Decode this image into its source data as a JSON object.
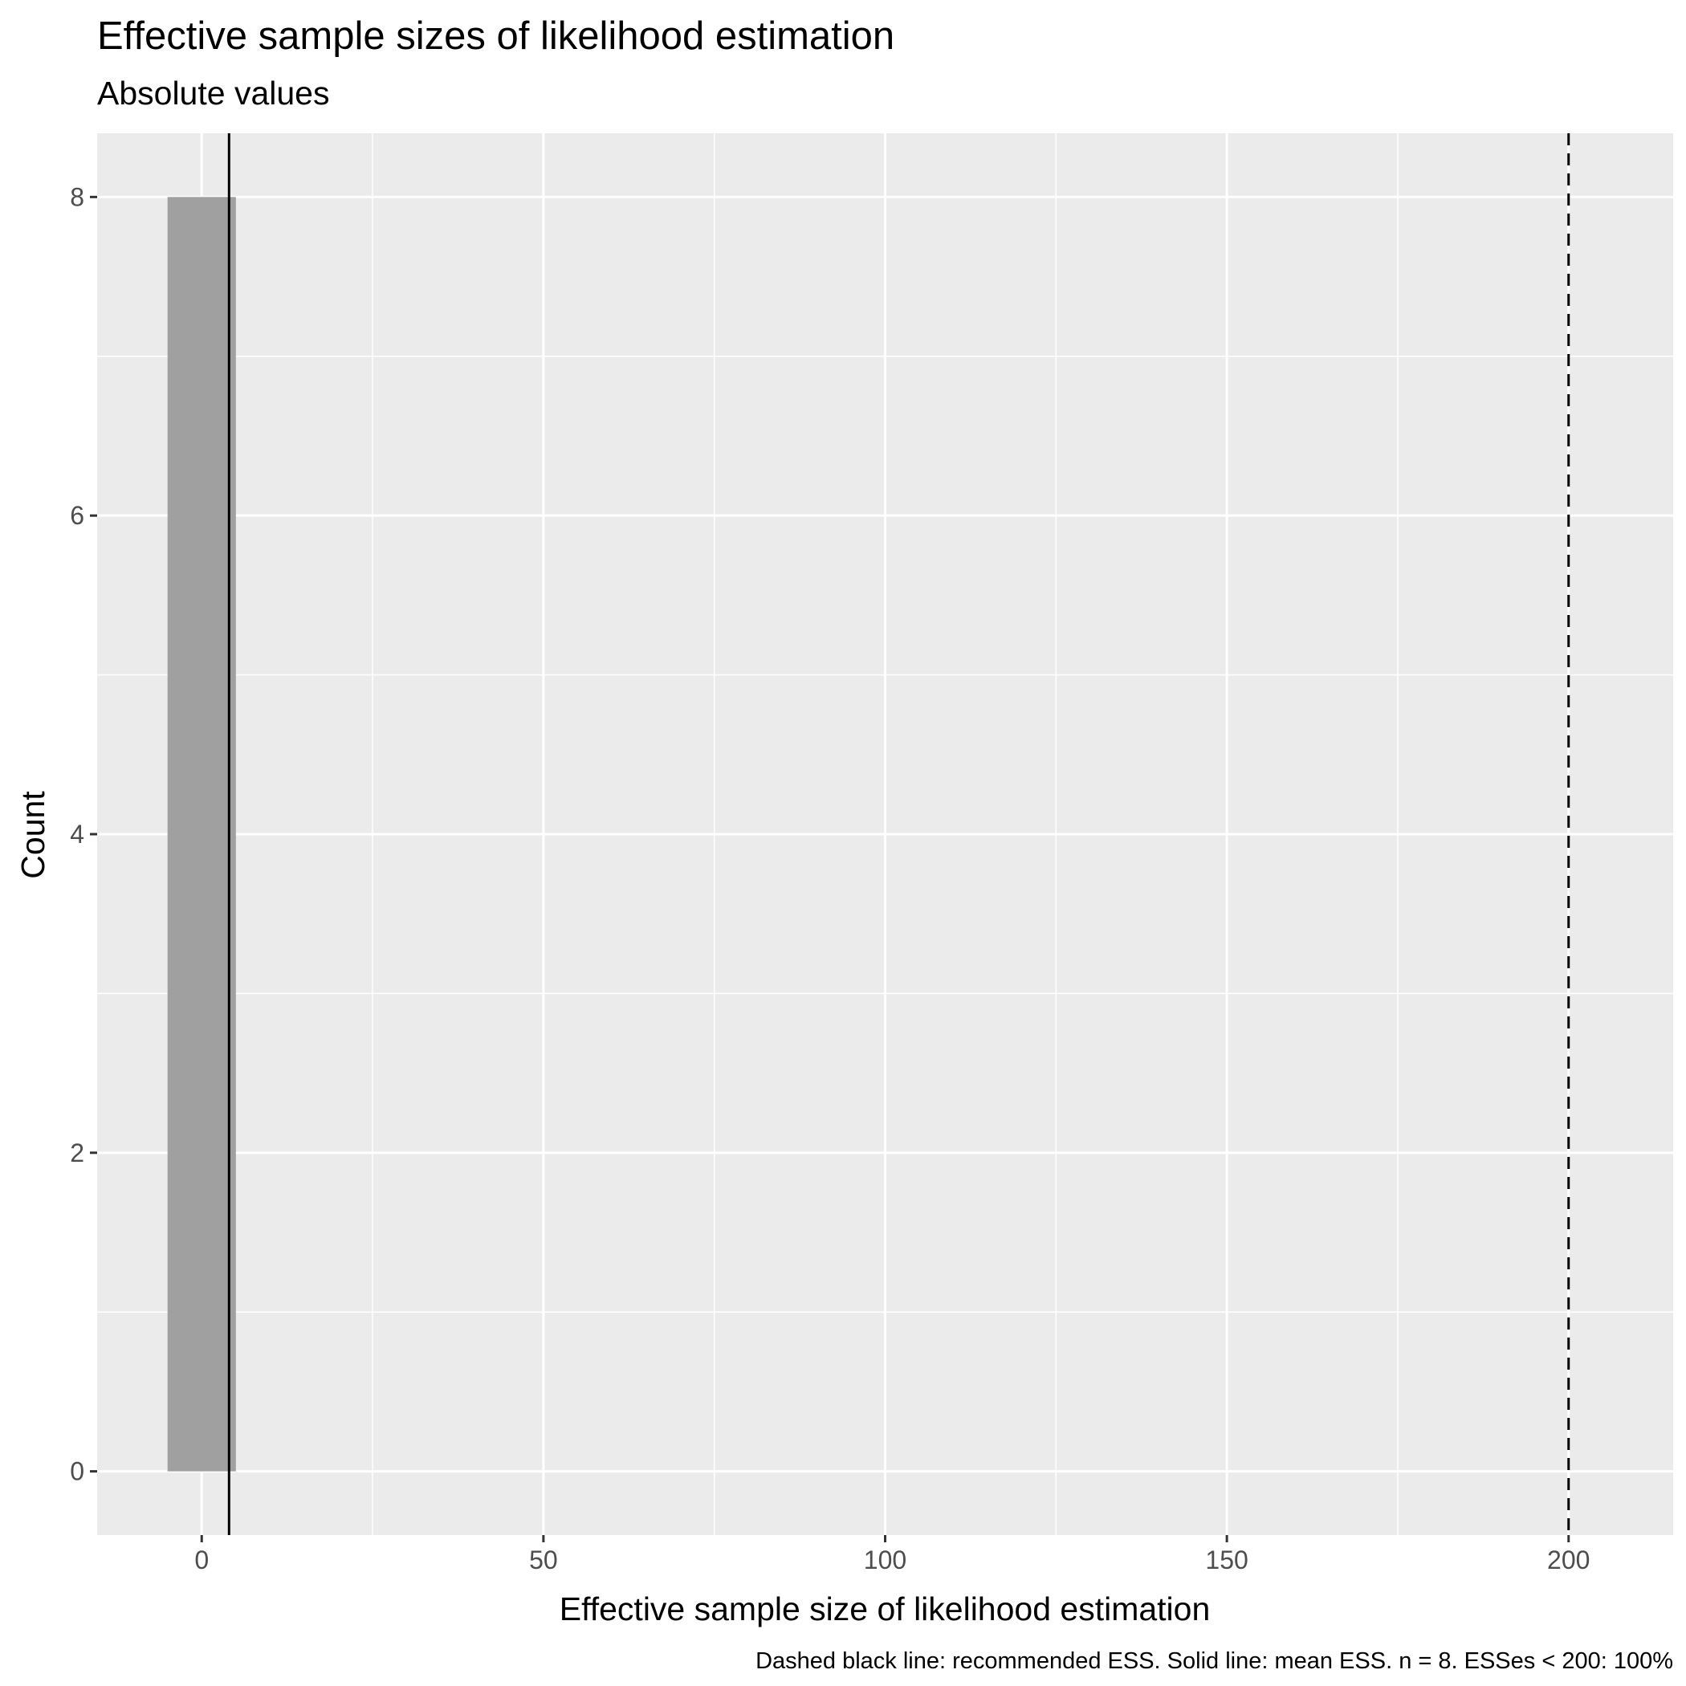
{
  "chart_data": {
    "type": "bar",
    "title": "Effective sample sizes of likelihood estimation",
    "subtitle": "Absolute values",
    "xlabel": "Effective sample size of likelihood estimation",
    "ylabel": "Count",
    "caption": "Dashed black line: recommended ESS. Solid line: mean ESS. n =  8. ESSes < 200: 100%",
    "xlim": [
      -15.3,
      215.3
    ],
    "ylim": [
      -0.4,
      8.4
    ],
    "x_ticks": [
      0,
      50,
      100,
      150,
      200
    ],
    "x_tick_labels": [
      "0",
      "50",
      "100",
      "150",
      "200"
    ],
    "x_minor_ticks": [
      25,
      75,
      125,
      175
    ],
    "y_ticks": [
      0,
      2,
      4,
      6,
      8
    ],
    "y_tick_labels": [
      "0",
      "2",
      "4",
      "6",
      "8"
    ],
    "y_minor_ticks": [
      1,
      3,
      5,
      7
    ],
    "bins": [
      {
        "x_start": -5,
        "x_end": 5,
        "count": 8
      }
    ],
    "reference_lines": [
      {
        "x": 200,
        "style": "dashed",
        "color": "#000000"
      },
      {
        "x": 4,
        "style": "solid",
        "color": "#000000"
      }
    ],
    "bar_color": "#a0a0a0",
    "panel_background": "#ebebeb",
    "grid": true,
    "legend": "none"
  }
}
